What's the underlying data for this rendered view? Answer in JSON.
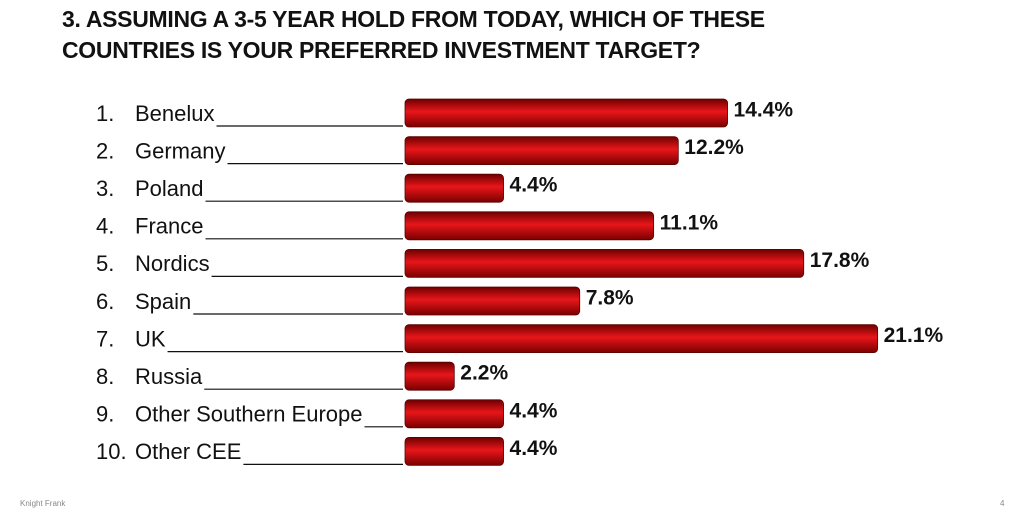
{
  "chart_data": {
    "type": "bar",
    "orientation": "horizontal",
    "title": "3. ASSUMING A 3-5 YEAR HOLD FROM TODAY, WHICH OF THESE COUNTRIES IS YOUR PREFERRED INVESTMENT TARGET?",
    "ranks": [
      "1.",
      "2.",
      "3.",
      "4.",
      "5.",
      "6.",
      "7.",
      "8.",
      "9.",
      "10."
    ],
    "categories": [
      "Benelux",
      "Germany",
      "Poland",
      "France",
      "Nordics",
      "Spain",
      "UK",
      "Russia",
      "Other Southern Europe",
      "Other CEE"
    ],
    "values": [
      14.4,
      12.2,
      4.4,
      11.1,
      17.8,
      7.8,
      21.1,
      2.2,
      4.4,
      4.4
    ],
    "value_labels": [
      "14.4%",
      "12.2%",
      "4.4%",
      "11.1%",
      "17.8%",
      "7.8%",
      "21.1%",
      "2.2%",
      "4.4%",
      "4.4%"
    ],
    "color": "#d01010"
  },
  "footer": {
    "left": "Knight Frank",
    "page": "4"
  }
}
